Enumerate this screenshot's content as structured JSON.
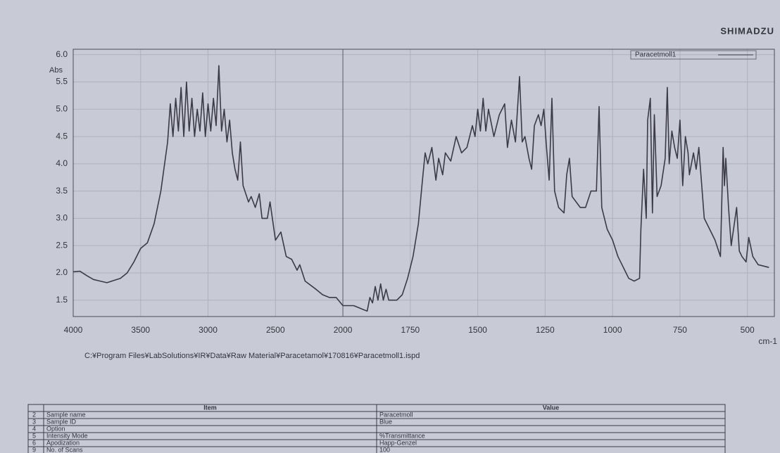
{
  "brand": "SHIMADZU",
  "file_path": "C:¥Program Files¥LabSolutions¥IR¥Data¥Raw Material¥Paracetamol¥170816¥Paracetmoll1.ispd",
  "chart_data": {
    "type": "line",
    "y_label": "Abs",
    "x_label": "cm-1",
    "xlim": [
      4000,
      400
    ],
    "x_scale_change": {
      "at": 2000,
      "ratio": 2
    },
    "ylim": [
      1.2,
      6.1
    ],
    "xticks": [
      4000,
      3500,
      3000,
      2500,
      2000,
      1750,
      1500,
      1250,
      1000,
      750,
      500
    ],
    "yticks": [
      {
        "value": 1.5,
        "label": "1.5"
      },
      {
        "value": 2,
        "label": "2.0"
      },
      {
        "value": 2.5,
        "label": "2.5"
      },
      {
        "value": 3,
        "label": "3.0"
      },
      {
        "value": 3.5,
        "label": "3.5"
      },
      {
        "value": 4,
        "label": "4.0"
      },
      {
        "value": 4.5,
        "label": "4.5"
      },
      {
        "value": 5,
        "label": "5.0"
      },
      {
        "value": 5.5,
        "label": "5.5"
      },
      {
        "value": 6,
        "label": "6.0"
      }
    ],
    "grid": true,
    "legend": "top-right",
    "x": [
      4000,
      3950,
      3900,
      3850,
      3800,
      3750,
      3700,
      3650,
      3600,
      3550,
      3500,
      3450,
      3400,
      3350,
      3300,
      3280,
      3260,
      3240,
      3220,
      3200,
      3180,
      3160,
      3140,
      3120,
      3100,
      3080,
      3060,
      3040,
      3020,
      3000,
      2980,
      2960,
      2940,
      2920,
      2900,
      2880,
      2860,
      2840,
      2820,
      2800,
      2780,
      2760,
      2740,
      2700,
      2680,
      2650,
      2620,
      2600,
      2560,
      2540,
      2500,
      2460,
      2420,
      2380,
      2340,
      2320,
      2280,
      2200,
      2150,
      2100,
      2050,
      2000,
      1960,
      1920,
      1910,
      1900,
      1890,
      1880,
      1870,
      1860,
      1850,
      1840,
      1830,
      1800,
      1780,
      1760,
      1740,
      1720,
      1705,
      1695,
      1685,
      1670,
      1655,
      1645,
      1630,
      1620,
      1600,
      1580,
      1560,
      1540,
      1520,
      1510,
      1500,
      1490,
      1480,
      1470,
      1460,
      1440,
      1420,
      1400,
      1390,
      1375,
      1360,
      1345,
      1335,
      1325,
      1310,
      1300,
      1290,
      1275,
      1265,
      1255,
      1245,
      1235,
      1225,
      1215,
      1200,
      1180,
      1170,
      1160,
      1150,
      1120,
      1100,
      1080,
      1060,
      1050,
      1040,
      1020,
      1000,
      980,
      960,
      940,
      920,
      900,
      895,
      885,
      875,
      870,
      860,
      852,
      845,
      835,
      820,
      805,
      797,
      790,
      780,
      770,
      760,
      750,
      740,
      730,
      720,
      715,
      700,
      690,
      680,
      660,
      640,
      620,
      600,
      590,
      585,
      580,
      570,
      560,
      540,
      530,
      520,
      505,
      495,
      480,
      460,
      420
    ],
    "series": [
      {
        "name": "Paracetmoll1",
        "color": "#3a3b46",
        "values": [
          2.02,
          2.03,
          1.95,
          1.88,
          1.85,
          1.82,
          1.86,
          1.9,
          2.0,
          2.2,
          2.45,
          2.55,
          2.9,
          3.5,
          4.4,
          5.1,
          4.5,
          5.2,
          4.6,
          5.4,
          4.5,
          5.5,
          4.6,
          5.2,
          4.5,
          5.0,
          4.6,
          5.3,
          4.5,
          5.1,
          4.6,
          5.2,
          4.7,
          5.8,
          4.6,
          5.0,
          4.4,
          4.8,
          4.2,
          3.9,
          3.7,
          4.4,
          3.6,
          3.3,
          3.4,
          3.2,
          3.45,
          3.0,
          3.0,
          3.3,
          2.6,
          2.75,
          2.3,
          2.25,
          2.05,
          2.15,
          1.85,
          1.7,
          1.6,
          1.55,
          1.55,
          1.4,
          1.4,
          1.32,
          1.3,
          1.55,
          1.45,
          1.75,
          1.5,
          1.8,
          1.5,
          1.7,
          1.5,
          1.5,
          1.6,
          1.9,
          2.3,
          2.9,
          3.7,
          4.2,
          4.0,
          4.3,
          3.7,
          4.1,
          3.8,
          4.2,
          4.05,
          4.5,
          4.2,
          4.3,
          4.7,
          4.5,
          5.0,
          4.6,
          5.2,
          4.6,
          5.0,
          4.5,
          4.9,
          5.1,
          4.3,
          4.8,
          4.4,
          5.6,
          4.4,
          4.5,
          4.1,
          3.9,
          4.7,
          4.9,
          4.7,
          5.0,
          4.3,
          3.7,
          5.2,
          3.5,
          3.2,
          3.1,
          3.8,
          4.1,
          3.4,
          3.2,
          3.2,
          3.5,
          3.5,
          5.05,
          3.2,
          2.8,
          2.6,
          2.3,
          2.1,
          1.9,
          1.85,
          1.9,
          2.8,
          3.9,
          3.0,
          4.8,
          5.2,
          3.1,
          4.9,
          3.4,
          3.6,
          4.1,
          5.4,
          4.0,
          4.6,
          4.3,
          4.1,
          4.8,
          3.6,
          4.5,
          4.2,
          3.8,
          4.2,
          3.9,
          4.3,
          3.0,
          2.8,
          2.6,
          2.3,
          4.3,
          3.6,
          4.1,
          3.2,
          2.5,
          3.2,
          2.4,
          2.3,
          2.2,
          2.65,
          2.3,
          2.15,
          2.1
        ]
      }
    ]
  },
  "table": {
    "header": [
      "Item",
      "Value"
    ],
    "rows": [
      [
        "2",
        "Sample name",
        "Paracetmoll"
      ],
      [
        "3",
        "Sample ID",
        "Blue"
      ],
      [
        "4",
        "Option"
      ],
      [
        "5",
        "Intensity Mode",
        "%Transmittance"
      ],
      [
        "6",
        "Apodization",
        "Happ-Genzel"
      ],
      [
        "9",
        "No. of Scans",
        "100"
      ]
    ]
  }
}
